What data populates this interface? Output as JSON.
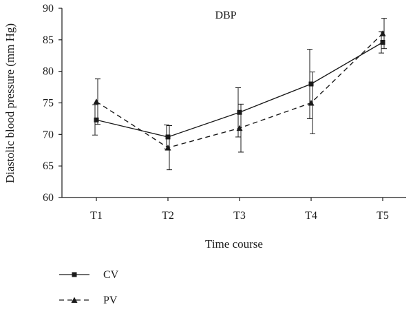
{
  "chart_data": {
    "type": "line",
    "title": "DBP",
    "xlabel": "Time course",
    "ylabel": "Diastolic blood pressure (mm Hg)",
    "categories": [
      "T1",
      "T2",
      "T3",
      "T4",
      "T5"
    ],
    "ylim": [
      60,
      90
    ],
    "yticks": [
      60,
      65,
      70,
      75,
      80,
      85,
      90
    ],
    "grid": false,
    "legend_position": "bottom-left",
    "series": [
      {
        "name": "CV",
        "marker": "square",
        "line_style": "solid",
        "color": "#1a1a1a",
        "values": [
          72.3,
          69.6,
          73.5,
          78.0,
          84.6
        ],
        "error": [
          2.4,
          1.9,
          3.9,
          5.5,
          1.7
        ]
      },
      {
        "name": "PV",
        "marker": "triangle",
        "line_style": "dashed",
        "color": "#1a1a1a",
        "values": [
          75.2,
          67.9,
          71.0,
          75.0,
          86.0
        ],
        "error": [
          3.6,
          3.5,
          3.8,
          4.9,
          2.4
        ]
      }
    ]
  }
}
